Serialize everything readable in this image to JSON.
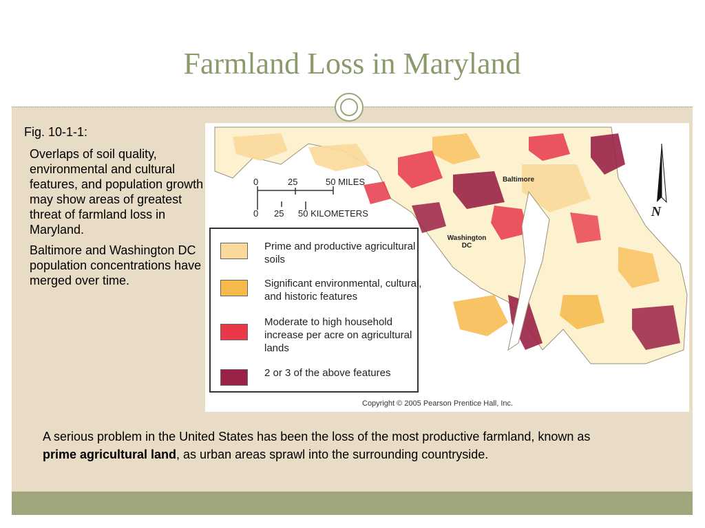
{
  "slide": {
    "title": "Farmland Loss in Maryland",
    "colors": {
      "title": "#8a9a6a",
      "background": "#e9dcc7",
      "footer": "#a0a57c"
    }
  },
  "left_panel": {
    "fig_label": "Fig. 10-1-1:",
    "paragraph_1": "Overlaps of soil quality, environmental and cultural features, and population growth may show areas of greatest threat of farmland loss in Maryland.",
    "paragraph_2": "Baltimore and Washington DC population concentrations have merged over time."
  },
  "map": {
    "scale": {
      "miles_ticks": [
        "0",
        "25",
        "50 MILES"
      ],
      "km_ticks": [
        "0",
        "25",
        "50 KILOMETERS"
      ]
    },
    "city_labels": {
      "baltimore": "Baltimore",
      "washington": "Washington DC"
    },
    "north_label": "N",
    "legend": [
      {
        "label": "Prime and productive agricultural soils",
        "color": "#fbd99a"
      },
      {
        "label": "Significant environmental, cultural, and historic features",
        "color": "#f6b94a"
      },
      {
        "label": "Moderate to high household increase per acre on agricultural lands",
        "color": "#e8384a"
      },
      {
        "label": "2 or 3 of the above features",
        "color": "#9a2246"
      }
    ],
    "copyright": "Copyright © 2005 Pearson Prentice Hall, Inc."
  },
  "bottom": {
    "text_before": "A serious problem in the United States has been the loss of the most productive farmland, known as ",
    "bold_term": "prime agricultural land",
    "text_after": ", as urban areas sprawl into the surrounding countryside."
  }
}
